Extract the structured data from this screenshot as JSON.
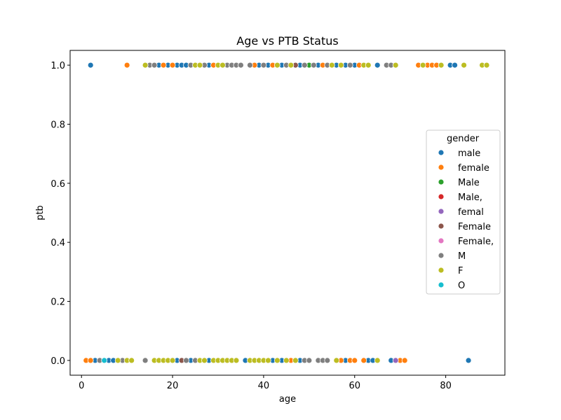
{
  "chart_data": {
    "type": "scatter",
    "title": "Age vs PTB Status",
    "xlabel": "age",
    "ylabel": "ptb",
    "xlim": [
      -2.5,
      93
    ],
    "ylim": [
      -0.05,
      1.05
    ],
    "x_ticks": [
      0,
      20,
      40,
      60,
      80
    ],
    "y_ticks": [
      0.0,
      0.2,
      0.4,
      0.6,
      0.8,
      1.0
    ],
    "x_tick_labels": [
      "0",
      "20",
      "40",
      "60",
      "80"
    ],
    "y_tick_labels": [
      "0.0",
      "0.2",
      "0.4",
      "0.6",
      "0.8",
      "1.0"
    ],
    "grid": false,
    "legend": {
      "title": "gender",
      "position": "right"
    },
    "series": [
      {
        "name": "male",
        "color": "#1f77b4",
        "points": [
          [
            2,
            1
          ],
          [
            17,
            1
          ],
          [
            19,
            1
          ],
          [
            21,
            1
          ],
          [
            22,
            1
          ],
          [
            23,
            1
          ],
          [
            26,
            1
          ],
          [
            28,
            1
          ],
          [
            35,
            1
          ],
          [
            39,
            1
          ],
          [
            41,
            1
          ],
          [
            44,
            1
          ],
          [
            48,
            1
          ],
          [
            52,
            1
          ],
          [
            56,
            1
          ],
          [
            58,
            1
          ],
          [
            60,
            1
          ],
          [
            65,
            1
          ],
          [
            75,
            1
          ],
          [
            81,
            1
          ],
          [
            82,
            1
          ],
          [
            3,
            0
          ],
          [
            6,
            0
          ],
          [
            7,
            0
          ],
          [
            21,
            0
          ],
          [
            22,
            0
          ],
          [
            24,
            0
          ],
          [
            28,
            0
          ],
          [
            36,
            0
          ],
          [
            42,
            0
          ],
          [
            44,
            0
          ],
          [
            48,
            0
          ],
          [
            50,
            0
          ],
          [
            58,
            0
          ],
          [
            60,
            0
          ],
          [
            63,
            0
          ],
          [
            64,
            0
          ],
          [
            68,
            0
          ],
          [
            85,
            0
          ]
        ]
      },
      {
        "name": "female",
        "color": "#ff7f0e",
        "points": [
          [
            10,
            1
          ],
          [
            18,
            1
          ],
          [
            20,
            1
          ],
          [
            25,
            1
          ],
          [
            29,
            1
          ],
          [
            38,
            1
          ],
          [
            42,
            1
          ],
          [
            53,
            1
          ],
          [
            61,
            1
          ],
          [
            74,
            1
          ],
          [
            76,
            1
          ],
          [
            77,
            1
          ],
          [
            78,
            1
          ],
          [
            1,
            0
          ],
          [
            2,
            0
          ],
          [
            46,
            0
          ],
          [
            53,
            0
          ],
          [
            57,
            0
          ],
          [
            59,
            0
          ],
          [
            60,
            0
          ],
          [
            62,
            0
          ],
          [
            70,
            0
          ],
          [
            71,
            0
          ]
        ]
      },
      {
        "name": "Male",
        "color": "#2ca02c",
        "points": [
          [
            50,
            1
          ]
        ]
      },
      {
        "name": "Male,",
        "color": "#d62728",
        "points": []
      },
      {
        "name": "femal",
        "color": "#9467bd",
        "points": [
          [
            69,
            0
          ]
        ]
      },
      {
        "name": "Female",
        "color": "#8c564b",
        "points": [
          [
            22,
            0
          ],
          [
            47,
            1
          ]
        ]
      },
      {
        "name": "Female,",
        "color": "#e377c2",
        "points": []
      },
      {
        "name": "M",
        "color": "#7f7f7f",
        "points": [
          [
            15,
            1
          ],
          [
            16,
            1
          ],
          [
            24,
            1
          ],
          [
            27,
            1
          ],
          [
            32,
            1
          ],
          [
            33,
            1
          ],
          [
            34,
            1
          ],
          [
            35,
            1
          ],
          [
            37,
            1
          ],
          [
            40,
            1
          ],
          [
            45,
            1
          ],
          [
            49,
            1
          ],
          [
            51,
            1
          ],
          [
            54,
            1
          ],
          [
            59,
            1
          ],
          [
            67,
            1
          ],
          [
            68,
            1
          ],
          [
            4,
            0
          ],
          [
            9,
            0
          ],
          [
            14,
            0
          ],
          [
            23,
            0
          ],
          [
            25,
            0
          ],
          [
            49,
            0
          ],
          [
            50,
            0
          ],
          [
            52,
            0
          ],
          [
            53,
            0
          ],
          [
            54,
            0
          ]
        ]
      },
      {
        "name": "F",
        "color": "#bcbd22",
        "points": [
          [
            14,
            1
          ],
          [
            25,
            1
          ],
          [
            26,
            1
          ],
          [
            30,
            1
          ],
          [
            31,
            1
          ],
          [
            43,
            1
          ],
          [
            46,
            1
          ],
          [
            55,
            1
          ],
          [
            57,
            1
          ],
          [
            62,
            1
          ],
          [
            63,
            1
          ],
          [
            69,
            1
          ],
          [
            75,
            1
          ],
          [
            79,
            1
          ],
          [
            84,
            1
          ],
          [
            88,
            1
          ],
          [
            89,
            1
          ],
          [
            8,
            0
          ],
          [
            10,
            0
          ],
          [
            11,
            0
          ],
          [
            16,
            0
          ],
          [
            17,
            0
          ],
          [
            18,
            0
          ],
          [
            19,
            0
          ],
          [
            20,
            0
          ],
          [
            26,
            0
          ],
          [
            27,
            0
          ],
          [
            29,
            0
          ],
          [
            30,
            0
          ],
          [
            31,
            0
          ],
          [
            32,
            0
          ],
          [
            33,
            0
          ],
          [
            34,
            0
          ],
          [
            37,
            0
          ],
          [
            38,
            0
          ],
          [
            39,
            0
          ],
          [
            40,
            0
          ],
          [
            41,
            0
          ],
          [
            43,
            0
          ],
          [
            45,
            0
          ],
          [
            47,
            0
          ],
          [
            56,
            0
          ],
          [
            65,
            0
          ]
        ]
      },
      {
        "name": "O",
        "color": "#17becf",
        "points": [
          [
            5,
            0
          ]
        ]
      }
    ]
  }
}
